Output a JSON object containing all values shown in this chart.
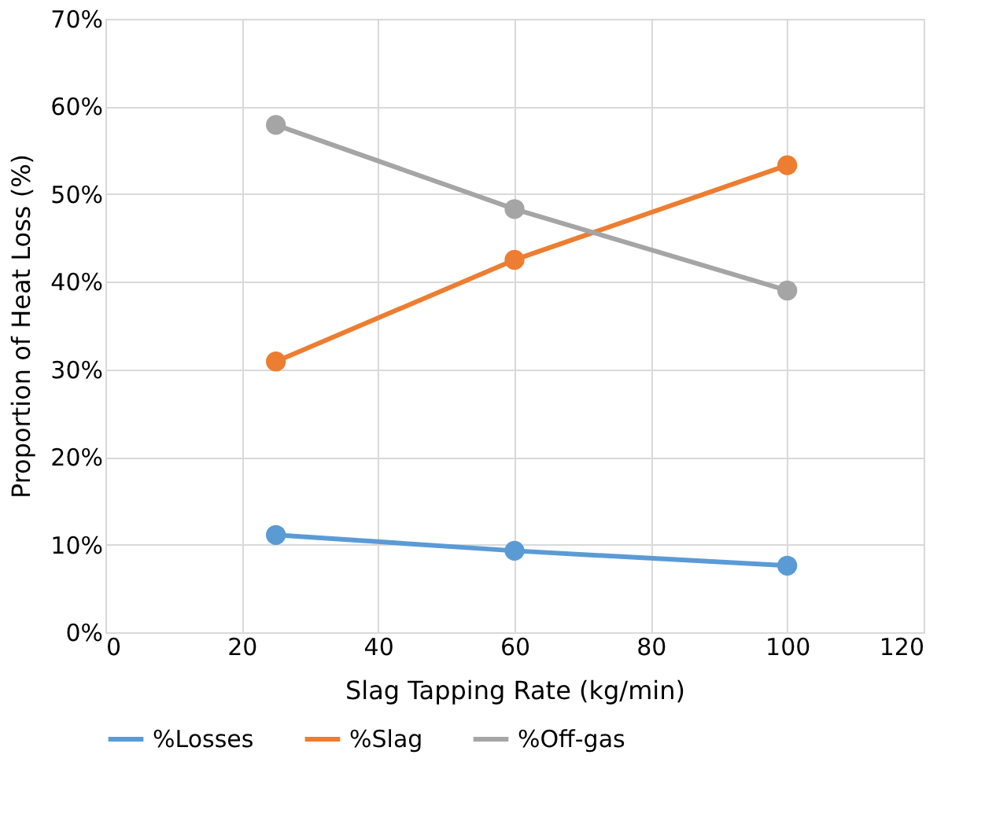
{
  "chart_data": {
    "type": "line",
    "xlabel": "Slag Tapping Rate (kg/min)",
    "ylabel": "Proportion of Heat Loss (%)",
    "x": [
      25,
      60,
      100
    ],
    "series": [
      {
        "name": "%Losses",
        "color": "#5b9bd5",
        "values": [
          11.1,
          9.3,
          7.6
        ]
      },
      {
        "name": "%Slag",
        "color": "#ed7d31",
        "values": [
          30.9,
          42.5,
          53.3
        ]
      },
      {
        "name": "%Off-gas",
        "color": "#a5a5a5",
        "values": [
          57.9,
          48.3,
          39.0
        ]
      }
    ],
    "xlim": [
      0,
      120
    ],
    "xticks": [
      0,
      20,
      40,
      60,
      80,
      100,
      120
    ],
    "ylim": [
      0,
      70
    ],
    "yticks": [
      {
        "value": 0,
        "label": "0%"
      },
      {
        "value": 10,
        "label": "10%"
      },
      {
        "value": 20,
        "label": "20%"
      },
      {
        "value": 30,
        "label": "30%"
      },
      {
        "value": 40,
        "label": "40%"
      },
      {
        "value": 50,
        "label": "50%"
      },
      {
        "value": 60,
        "label": "60%"
      },
      {
        "value": 70,
        "label": "70%"
      }
    ],
    "grid": true,
    "legend": "bottom",
    "marker": "circle",
    "line_style": "solid"
  }
}
